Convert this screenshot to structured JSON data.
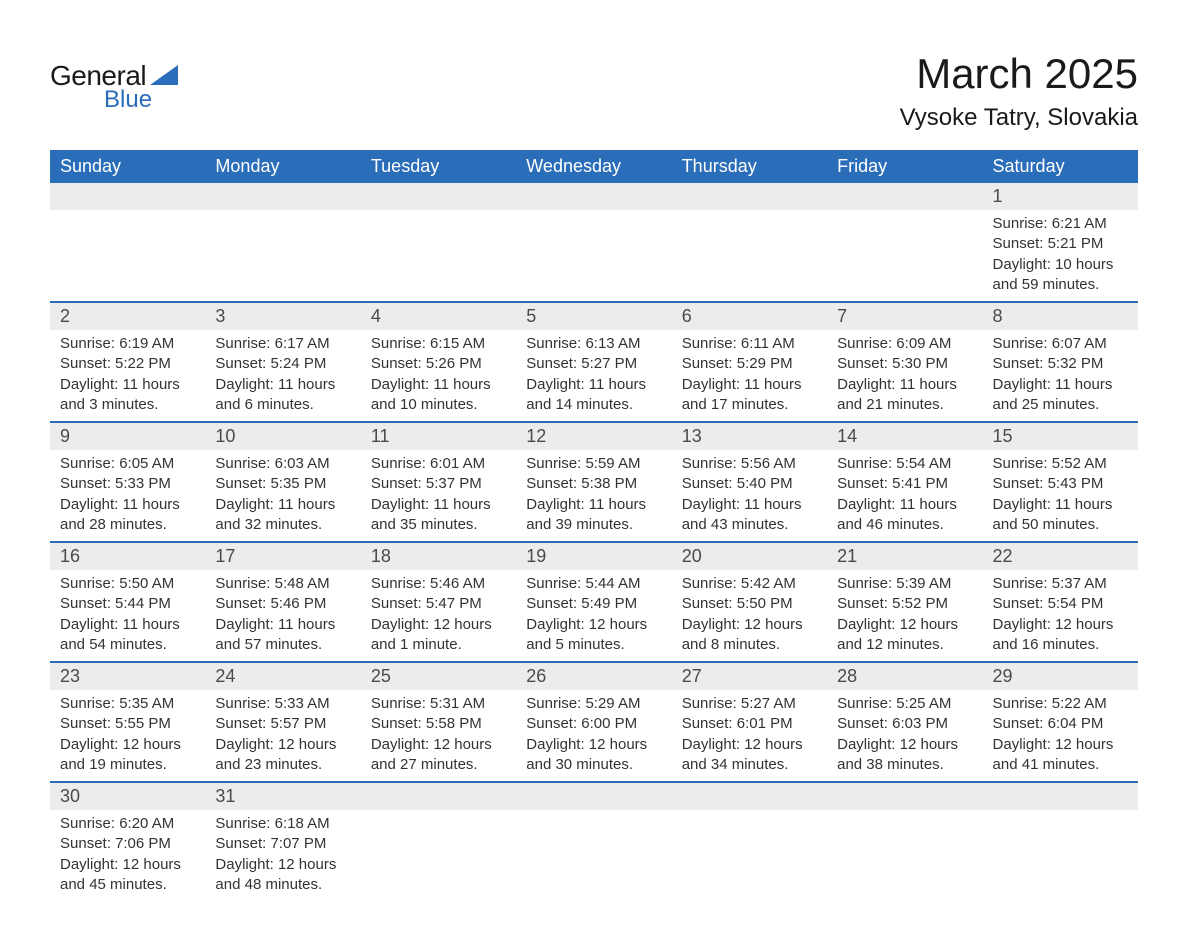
{
  "logo": {
    "word1": "General",
    "word2": "Blue",
    "accent_color": "#2a6db8"
  },
  "title": "March 2025",
  "location": "Vysoke Tatry, Slovakia",
  "colors": {
    "header_bg": "#2a6db8",
    "header_text": "#ffffff",
    "daynum_bg": "#ececec",
    "row_border": "#2a6db8",
    "body_text": "#333333",
    "daynum_text": "#4a4a4a"
  },
  "fonts": {
    "title_pt": 42,
    "location_pt": 24,
    "header_pt": 18,
    "daynum_pt": 18,
    "cell_pt": 15
  },
  "weekdays": [
    "Sunday",
    "Monday",
    "Tuesday",
    "Wednesday",
    "Thursday",
    "Friday",
    "Saturday"
  ],
  "weeks": [
    {
      "days": [
        {
          "num": "",
          "sunrise": "",
          "sunset": "",
          "daylight1": "",
          "daylight2": ""
        },
        {
          "num": "",
          "sunrise": "",
          "sunset": "",
          "daylight1": "",
          "daylight2": ""
        },
        {
          "num": "",
          "sunrise": "",
          "sunset": "",
          "daylight1": "",
          "daylight2": ""
        },
        {
          "num": "",
          "sunrise": "",
          "sunset": "",
          "daylight1": "",
          "daylight2": ""
        },
        {
          "num": "",
          "sunrise": "",
          "sunset": "",
          "daylight1": "",
          "daylight2": ""
        },
        {
          "num": "",
          "sunrise": "",
          "sunset": "",
          "daylight1": "",
          "daylight2": ""
        },
        {
          "num": "1",
          "sunrise": "Sunrise: 6:21 AM",
          "sunset": "Sunset: 5:21 PM",
          "daylight1": "Daylight: 10 hours",
          "daylight2": "and 59 minutes."
        }
      ]
    },
    {
      "days": [
        {
          "num": "2",
          "sunrise": "Sunrise: 6:19 AM",
          "sunset": "Sunset: 5:22 PM",
          "daylight1": "Daylight: 11 hours",
          "daylight2": "and 3 minutes."
        },
        {
          "num": "3",
          "sunrise": "Sunrise: 6:17 AM",
          "sunset": "Sunset: 5:24 PM",
          "daylight1": "Daylight: 11 hours",
          "daylight2": "and 6 minutes."
        },
        {
          "num": "4",
          "sunrise": "Sunrise: 6:15 AM",
          "sunset": "Sunset: 5:26 PM",
          "daylight1": "Daylight: 11 hours",
          "daylight2": "and 10 minutes."
        },
        {
          "num": "5",
          "sunrise": "Sunrise: 6:13 AM",
          "sunset": "Sunset: 5:27 PM",
          "daylight1": "Daylight: 11 hours",
          "daylight2": "and 14 minutes."
        },
        {
          "num": "6",
          "sunrise": "Sunrise: 6:11 AM",
          "sunset": "Sunset: 5:29 PM",
          "daylight1": "Daylight: 11 hours",
          "daylight2": "and 17 minutes."
        },
        {
          "num": "7",
          "sunrise": "Sunrise: 6:09 AM",
          "sunset": "Sunset: 5:30 PM",
          "daylight1": "Daylight: 11 hours",
          "daylight2": "and 21 minutes."
        },
        {
          "num": "8",
          "sunrise": "Sunrise: 6:07 AM",
          "sunset": "Sunset: 5:32 PM",
          "daylight1": "Daylight: 11 hours",
          "daylight2": "and 25 minutes."
        }
      ]
    },
    {
      "days": [
        {
          "num": "9",
          "sunrise": "Sunrise: 6:05 AM",
          "sunset": "Sunset: 5:33 PM",
          "daylight1": "Daylight: 11 hours",
          "daylight2": "and 28 minutes."
        },
        {
          "num": "10",
          "sunrise": "Sunrise: 6:03 AM",
          "sunset": "Sunset: 5:35 PM",
          "daylight1": "Daylight: 11 hours",
          "daylight2": "and 32 minutes."
        },
        {
          "num": "11",
          "sunrise": "Sunrise: 6:01 AM",
          "sunset": "Sunset: 5:37 PM",
          "daylight1": "Daylight: 11 hours",
          "daylight2": "and 35 minutes."
        },
        {
          "num": "12",
          "sunrise": "Sunrise: 5:59 AM",
          "sunset": "Sunset: 5:38 PM",
          "daylight1": "Daylight: 11 hours",
          "daylight2": "and 39 minutes."
        },
        {
          "num": "13",
          "sunrise": "Sunrise: 5:56 AM",
          "sunset": "Sunset: 5:40 PM",
          "daylight1": "Daylight: 11 hours",
          "daylight2": "and 43 minutes."
        },
        {
          "num": "14",
          "sunrise": "Sunrise: 5:54 AM",
          "sunset": "Sunset: 5:41 PM",
          "daylight1": "Daylight: 11 hours",
          "daylight2": "and 46 minutes."
        },
        {
          "num": "15",
          "sunrise": "Sunrise: 5:52 AM",
          "sunset": "Sunset: 5:43 PM",
          "daylight1": "Daylight: 11 hours",
          "daylight2": "and 50 minutes."
        }
      ]
    },
    {
      "days": [
        {
          "num": "16",
          "sunrise": "Sunrise: 5:50 AM",
          "sunset": "Sunset: 5:44 PM",
          "daylight1": "Daylight: 11 hours",
          "daylight2": "and 54 minutes."
        },
        {
          "num": "17",
          "sunrise": "Sunrise: 5:48 AM",
          "sunset": "Sunset: 5:46 PM",
          "daylight1": "Daylight: 11 hours",
          "daylight2": "and 57 minutes."
        },
        {
          "num": "18",
          "sunrise": "Sunrise: 5:46 AM",
          "sunset": "Sunset: 5:47 PM",
          "daylight1": "Daylight: 12 hours",
          "daylight2": "and 1 minute."
        },
        {
          "num": "19",
          "sunrise": "Sunrise: 5:44 AM",
          "sunset": "Sunset: 5:49 PM",
          "daylight1": "Daylight: 12 hours",
          "daylight2": "and 5 minutes."
        },
        {
          "num": "20",
          "sunrise": "Sunrise: 5:42 AM",
          "sunset": "Sunset: 5:50 PM",
          "daylight1": "Daylight: 12 hours",
          "daylight2": "and 8 minutes."
        },
        {
          "num": "21",
          "sunrise": "Sunrise: 5:39 AM",
          "sunset": "Sunset: 5:52 PM",
          "daylight1": "Daylight: 12 hours",
          "daylight2": "and 12 minutes."
        },
        {
          "num": "22",
          "sunrise": "Sunrise: 5:37 AM",
          "sunset": "Sunset: 5:54 PM",
          "daylight1": "Daylight: 12 hours",
          "daylight2": "and 16 minutes."
        }
      ]
    },
    {
      "days": [
        {
          "num": "23",
          "sunrise": "Sunrise: 5:35 AM",
          "sunset": "Sunset: 5:55 PM",
          "daylight1": "Daylight: 12 hours",
          "daylight2": "and 19 minutes."
        },
        {
          "num": "24",
          "sunrise": "Sunrise: 5:33 AM",
          "sunset": "Sunset: 5:57 PM",
          "daylight1": "Daylight: 12 hours",
          "daylight2": "and 23 minutes."
        },
        {
          "num": "25",
          "sunrise": "Sunrise: 5:31 AM",
          "sunset": "Sunset: 5:58 PM",
          "daylight1": "Daylight: 12 hours",
          "daylight2": "and 27 minutes."
        },
        {
          "num": "26",
          "sunrise": "Sunrise: 5:29 AM",
          "sunset": "Sunset: 6:00 PM",
          "daylight1": "Daylight: 12 hours",
          "daylight2": "and 30 minutes."
        },
        {
          "num": "27",
          "sunrise": "Sunrise: 5:27 AM",
          "sunset": "Sunset: 6:01 PM",
          "daylight1": "Daylight: 12 hours",
          "daylight2": "and 34 minutes."
        },
        {
          "num": "28",
          "sunrise": "Sunrise: 5:25 AM",
          "sunset": "Sunset: 6:03 PM",
          "daylight1": "Daylight: 12 hours",
          "daylight2": "and 38 minutes."
        },
        {
          "num": "29",
          "sunrise": "Sunrise: 5:22 AM",
          "sunset": "Sunset: 6:04 PM",
          "daylight1": "Daylight: 12 hours",
          "daylight2": "and 41 minutes."
        }
      ]
    },
    {
      "days": [
        {
          "num": "30",
          "sunrise": "Sunrise: 6:20 AM",
          "sunset": "Sunset: 7:06 PM",
          "daylight1": "Daylight: 12 hours",
          "daylight2": "and 45 minutes."
        },
        {
          "num": "31",
          "sunrise": "Sunrise: 6:18 AM",
          "sunset": "Sunset: 7:07 PM",
          "daylight1": "Daylight: 12 hours",
          "daylight2": "and 48 minutes."
        },
        {
          "num": "",
          "sunrise": "",
          "sunset": "",
          "daylight1": "",
          "daylight2": ""
        },
        {
          "num": "",
          "sunrise": "",
          "sunset": "",
          "daylight1": "",
          "daylight2": ""
        },
        {
          "num": "",
          "sunrise": "",
          "sunset": "",
          "daylight1": "",
          "daylight2": ""
        },
        {
          "num": "",
          "sunrise": "",
          "sunset": "",
          "daylight1": "",
          "daylight2": ""
        },
        {
          "num": "",
          "sunrise": "",
          "sunset": "",
          "daylight1": "",
          "daylight2": ""
        }
      ]
    }
  ]
}
